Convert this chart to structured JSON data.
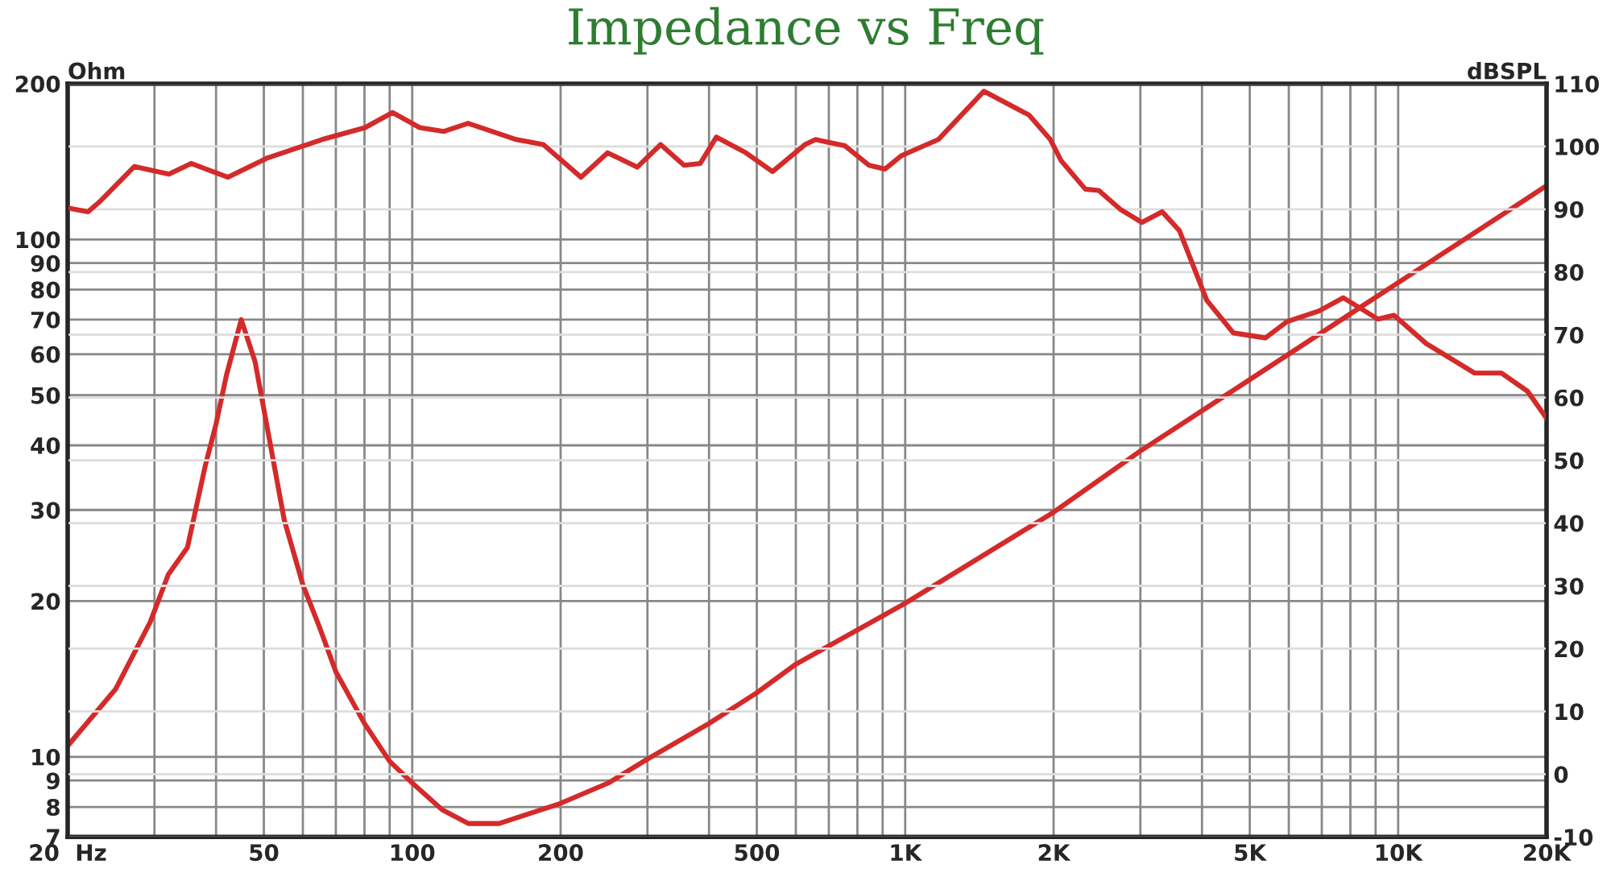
{
  "chart_data": {
    "type": "line",
    "title": "Impedance vs Freq",
    "ylabel": "Ohm",
    "y2label": "dBSPL",
    "log": "xy",
    "grid": true,
    "marker": "none",
    "line_style": "solid",
    "xlim": [
      20,
      20000
    ],
    "xticks": [
      {
        "value": 20,
        "label": "20  Hz"
      },
      {
        "value": 30,
        "label": null
      },
      {
        "value": 40,
        "label": null
      },
      50,
      {
        "value": 60,
        "label": null
      },
      {
        "value": 70,
        "label": null
      },
      {
        "value": 80,
        "label": null
      },
      {
        "value": 90,
        "label": null
      },
      100,
      200,
      {
        "value": 300,
        "label": null
      },
      {
        "value": 400,
        "label": null
      },
      500,
      {
        "value": 600,
        "label": null
      },
      {
        "value": 700,
        "label": null
      },
      {
        "value": 800,
        "label": null
      },
      {
        "value": 900,
        "label": null
      },
      {
        "value": 1000,
        "label": "1K"
      },
      {
        "value": 2000,
        "label": "2K"
      },
      {
        "value": 3000,
        "label": null
      },
      {
        "value": 4000,
        "label": null
      },
      {
        "value": 5000,
        "label": "5K"
      },
      {
        "value": 6000,
        "label": null
      },
      {
        "value": 7000,
        "label": null
      },
      {
        "value": 8000,
        "label": null
      },
      {
        "value": 9000,
        "label": null
      },
      {
        "value": 10000,
        "label": "10K"
      },
      {
        "value": 20000,
        "label": "20K"
      }
    ],
    "ylim": [
      7,
      200
    ],
    "yticks": [
      7,
      8,
      9,
      10,
      20,
      30,
      40,
      50,
      60,
      70,
      80,
      90,
      100,
      200
    ],
    "y2lim": [
      -10,
      110
    ],
    "y2ticks": [
      -10,
      0,
      10,
      20,
      30,
      40,
      50,
      60,
      70,
      80,
      90,
      100,
      110
    ],
    "series": [
      {
        "color": "#d42a2a",
        "x": [
          20,
          25,
          29.4,
          32,
          35,
          38,
          40,
          42,
          45,
          48,
          50,
          55,
          60,
          65,
          70,
          80,
          90,
          100,
          115,
          130,
          150,
          200,
          250,
          300,
          400,
          500,
          600,
          1000,
          2000,
          3000,
          5000,
          8500,
          10000,
          20000
        ],
        "values": [
          10.5,
          13.5,
          18.2,
          22.5,
          25.4,
          36.4,
          44,
          54.7,
          70,
          58,
          47,
          28.7,
          21.5,
          17.7,
          14.6,
          11.6,
          9.8,
          8.9,
          7.9,
          7.43,
          7.43,
          8.13,
          8.9,
          9.9,
          11.6,
          13.3,
          15.1,
          19.8,
          29.7,
          39,
          53.6,
          74.6,
          82.5,
          127
        ]
      },
      {
        "color": "#d42a2a",
        "axis": "y2",
        "x": [
          20,
          22,
          23.3,
          27.3,
          32.1,
          35.6,
          42.3,
          50.6,
          65.6,
          80.2,
          91.2,
          103.6,
          116,
          129.8,
          162.7,
          184.5,
          220,
          249,
          286,
          319,
          356,
          384,
          414,
          475,
          538,
          626,
          658,
          755,
          845,
          910,
          981,
          1167,
          1444,
          1784,
          1970,
          2073,
          2320,
          2470,
          2730,
          3020,
          3320,
          3600,
          4090,
          4630,
          5380,
          5950,
          6910,
          7740,
          9100,
          9810,
          11400,
          14300,
          16200,
          18300,
          20000
        ],
        "values": [
          90.2,
          89.6,
          91.3,
          96.8,
          95.6,
          97.3,
          95.1,
          98.1,
          101.1,
          103.0,
          105.4,
          103.0,
          102.4,
          103.7,
          101.1,
          100.3,
          95.1,
          99.0,
          96.7,
          100.3,
          97.0,
          97.3,
          101.5,
          99.0,
          96.0,
          100.3,
          101.1,
          100.1,
          97.0,
          96.4,
          98.5,
          101.1,
          108.8,
          105.0,
          101.1,
          97.7,
          93.2,
          93.0,
          90.0,
          87.9,
          89.6,
          86.6,
          75.5,
          70.3,
          69.5,
          72.1,
          73.8,
          75.9,
          72.5,
          73.1,
          68.6,
          63.9,
          63.9,
          61.0,
          56.7
        ]
      }
    ]
  }
}
